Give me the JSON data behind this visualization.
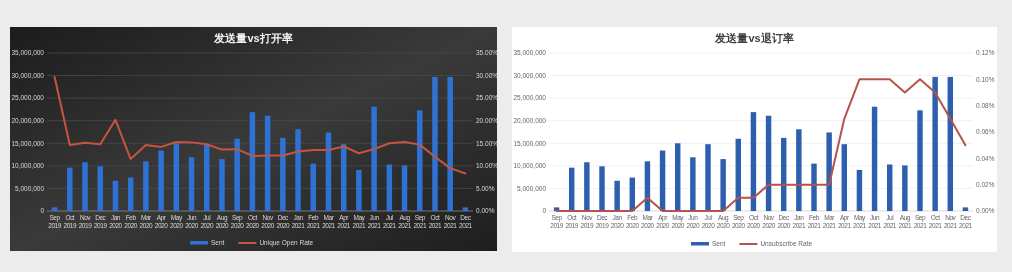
{
  "chart_data": [
    {
      "type": "bar",
      "title": "发送量vs打开率",
      "categories": [
        "Sep 2019",
        "Oct 2019",
        "Nov 2019",
        "Dec 2019",
        "Jan 2020",
        "Feb 2020",
        "Mar 2020",
        "Apr 2020",
        "May 2020",
        "Jun 2020",
        "Jul 2020",
        "Aug 2020",
        "Sep 2020",
        "Oct 2020",
        "Nov 2020",
        "Dec 2020",
        "Jan 2021",
        "Feb 2021",
        "Mar 2021",
        "Apr 2021",
        "May 2021",
        "Jun 2021",
        "Jul 2021",
        "Aug 2021",
        "Sep 2021",
        "Oct 2021",
        "Nov 2021",
        "Dec 2021"
      ],
      "series": [
        {
          "name": "Sent",
          "type": "bar",
          "color": "#2f72d6",
          "values": [
            800000,
            9600000,
            10800000,
            9900000,
            6700000,
            7400000,
            11000000,
            13400000,
            15000000,
            11900000,
            14800000,
            11500000,
            16000000,
            21900000,
            21100000,
            16200000,
            18100000,
            10500000,
            17400000,
            14800000,
            9100000,
            23100000,
            10300000,
            10100000,
            22300000,
            29700000,
            29700000,
            800000
          ]
        },
        {
          "name": "Unique Open Rate",
          "type": "line",
          "axis": "y2",
          "color": "#c4553f",
          "values": [
            29.7,
            14.6,
            15.1,
            14.8,
            20.2,
            11.5,
            14.6,
            14.2,
            15.3,
            15.2,
            14.8,
            13.6,
            13.7,
            12.2,
            12.3,
            12.3,
            13.2,
            13.5,
            13.5,
            14.3,
            12.8,
            13.7,
            15.0,
            15.3,
            14.7,
            12.0,
            9.5,
            8.3
          ]
        }
      ],
      "ylim": [
        0,
        35000000
      ],
      "yticks": [
        {
          "value": 0,
          "label": "0"
        },
        {
          "value": 5000000,
          "label": "5,000,000"
        },
        {
          "value": 10000000,
          "label": "10,000,000"
        },
        {
          "value": 15000000,
          "label": "15,000,000"
        },
        {
          "value": 20000000,
          "label": "20,000,000"
        },
        {
          "value": 25000000,
          "label": "25,000,000"
        },
        {
          "value": 30000000,
          "label": "30,000,000"
        },
        {
          "value": 35000000,
          "label": "35,000,000"
        }
      ],
      "y2lim": [
        0,
        35
      ],
      "y2ticks": [
        {
          "value": 0,
          "label": "0.00%"
        },
        {
          "value": 5,
          "label": "5.00%"
        },
        {
          "value": 10,
          "label": "10.00%"
        },
        {
          "value": 15,
          "label": "15.00%"
        },
        {
          "value": 20,
          "label": "20.00%"
        },
        {
          "value": 25,
          "label": "25.00%"
        },
        {
          "value": 30,
          "label": "30.00%"
        },
        {
          "value": 35,
          "label": "35.00%"
        }
      ],
      "grid": "y",
      "legend": "bottom"
    },
    {
      "type": "bar",
      "title": "发送量vs退订率",
      "categories": [
        "Sep 2019",
        "Oct 2019",
        "Nov 2019",
        "Dec 2019",
        "Jan 2020",
        "Feb 2020",
        "Mar 2020",
        "Apr 2020",
        "May 2020",
        "Jun 2020",
        "Jul 2020",
        "Aug 2020",
        "Sep 2020",
        "Oct 2020",
        "Nov 2020",
        "Dec 2020",
        "Jan 2021",
        "Feb 2021",
        "Mar 2021",
        "Apr 2021",
        "May 2021",
        "Jun 2021",
        "Jul 2021",
        "Aug 2021",
        "Sep 2021",
        "Oct 2021",
        "Nov 2021",
        "Dec 2021"
      ],
      "series": [
        {
          "name": "Sent",
          "type": "bar",
          "color": "#2d5fae",
          "values": [
            800000,
            9600000,
            10800000,
            9900000,
            6700000,
            7400000,
            11000000,
            13400000,
            15000000,
            11900000,
            14800000,
            11500000,
            16000000,
            21900000,
            21100000,
            16200000,
            18100000,
            10500000,
            17400000,
            14800000,
            9100000,
            23100000,
            10300000,
            10100000,
            22300000,
            29700000,
            29700000,
            800000
          ]
        },
        {
          "name": "Unsubscribe Rate",
          "type": "line",
          "axis": "y2",
          "color": "#b5534a",
          "values": [
            0,
            0,
            0,
            0,
            0,
            0,
            0.01,
            0,
            0,
            0,
            0,
            0,
            0.01,
            0.01,
            0.02,
            0.02,
            0.02,
            0.02,
            0.02,
            0.07,
            0.1,
            0.1,
            0.1,
            0.09,
            0.1,
            0.09,
            0.07,
            0.05
          ]
        }
      ],
      "ylim": [
        0,
        35000000
      ],
      "yticks": [
        {
          "value": 0,
          "label": "0"
        },
        {
          "value": 5000000,
          "label": "5,000,000"
        },
        {
          "value": 10000000,
          "label": "10,000,000"
        },
        {
          "value": 15000000,
          "label": "15,000,000"
        },
        {
          "value": 20000000,
          "label": "20,000,000"
        },
        {
          "value": 25000000,
          "label": "25,000,000"
        },
        {
          "value": 30000000,
          "label": "30,000,000"
        },
        {
          "value": 35000000,
          "label": "35,000,000"
        }
      ],
      "y2lim": [
        0,
        0.12
      ],
      "y2ticks": [
        {
          "value": 0,
          "label": "0.00%"
        },
        {
          "value": 0.02,
          "label": "0.02%"
        },
        {
          "value": 0.04,
          "label": "0.04%"
        },
        {
          "value": 0.06,
          "label": "0.06%"
        },
        {
          "value": 0.08,
          "label": "0.08%"
        },
        {
          "value": 0.1,
          "label": "0.10%"
        },
        {
          "value": 0.12,
          "label": "0.12%"
        }
      ],
      "grid": "y",
      "legend": "bottom"
    }
  ]
}
